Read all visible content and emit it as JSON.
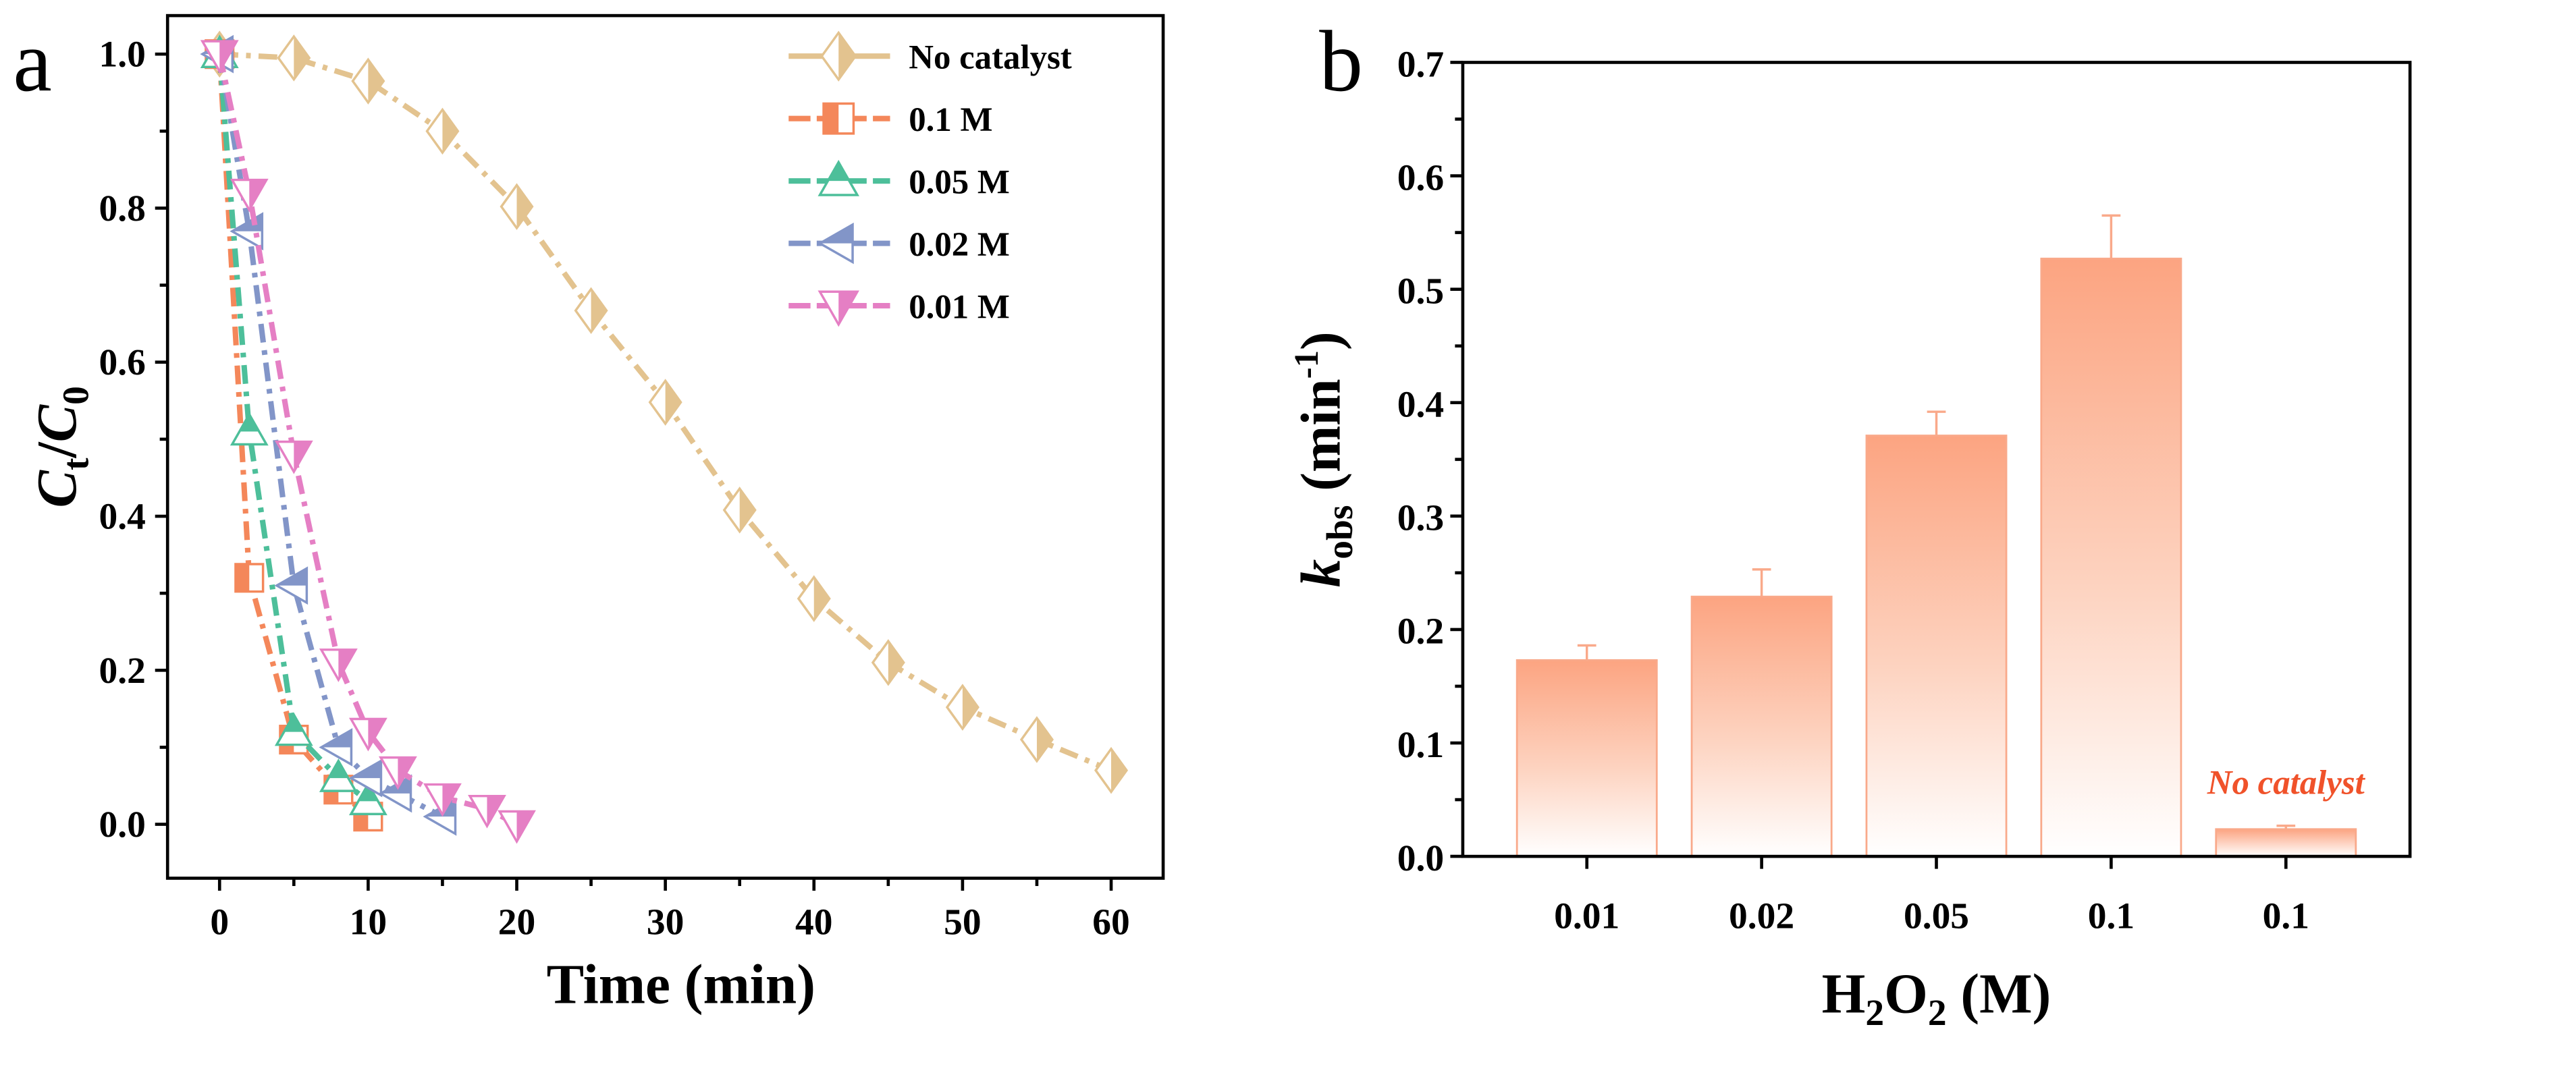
{
  "chart_data": [
    {
      "panel": "a",
      "type": "line",
      "xlabel": "Time (min)",
      "ylabel": {
        "main": "C",
        "sub1": "t",
        "slash": "/",
        "main2": "C",
        "sub2": "0"
      },
      "xlim": [
        -3.5,
        63.5
      ],
      "ylim": [
        -0.07,
        1.05
      ],
      "xticks": [
        0,
        10,
        20,
        30,
        40,
        50,
        60
      ],
      "xtick_labels": [
        "0",
        "10",
        "20",
        "30",
        "40",
        "50",
        "60"
      ],
      "yticks": [
        0.0,
        0.2,
        0.4,
        0.6,
        0.8,
        1.0
      ],
      "ytick_labels": [
        "0.0",
        "0.2",
        "0.4",
        "0.6",
        "0.8",
        "1.0"
      ],
      "legend_position": "top-right",
      "series": [
        {
          "name": "No catalyst",
          "color": "#E3C38F",
          "marker": "diamond",
          "x": [
            0,
            5,
            10,
            15,
            20,
            25,
            30,
            35,
            40,
            45,
            50,
            55,
            60
          ],
          "y": [
            1.0,
            0.995,
            0.965,
            0.9,
            0.802,
            0.667,
            0.548,
            0.408,
            0.293,
            0.21,
            0.152,
            0.11,
            0.07
          ]
        },
        {
          "name": "0.1 M",
          "color": "#F4875A",
          "marker": "square",
          "x": [
            0,
            2,
            5,
            8,
            10
          ],
          "y": [
            1.0,
            0.32,
            0.11,
            0.045,
            0.01
          ]
        },
        {
          "name": "0.05 M",
          "color": "#4DBF9A",
          "marker": "triangle-up",
          "x": [
            0,
            2,
            5,
            8,
            10
          ],
          "y": [
            1.0,
            0.51,
            0.12,
            0.06,
            0.03
          ]
        },
        {
          "name": "0.02 M",
          "color": "#8295C8",
          "marker": "triangle-left",
          "x": [
            0,
            2,
            5,
            8,
            10,
            12,
            15
          ],
          "y": [
            1.0,
            0.77,
            0.31,
            0.1,
            0.06,
            0.04,
            0.01
          ]
        },
        {
          "name": "0.01 M",
          "color": "#E57FC4",
          "marker": "triangle-down",
          "x": [
            0,
            2,
            5,
            8,
            10,
            12,
            15,
            18,
            20
          ],
          "y": [
            1.0,
            0.82,
            0.48,
            0.21,
            0.12,
            0.07,
            0.035,
            0.02,
            0.0
          ]
        }
      ]
    },
    {
      "panel": "b",
      "type": "bar",
      "xlabel": {
        "pre": "H",
        "sub1": "2",
        "mid": "O",
        "sub2": "2",
        "post": " (M)"
      },
      "ylabel": {
        "main": "k",
        "sub": "obs",
        "post": " (min",
        "sup": "-1",
        "end": ")"
      },
      "categories": [
        "0.01",
        "0.02",
        "0.05",
        "0.1",
        "0.1"
      ],
      "values": [
        0.173,
        0.229,
        0.371,
        0.527,
        0.024
      ],
      "errors": [
        0.013,
        0.024,
        0.021,
        0.038,
        0.003
      ],
      "ylim": [
        0,
        0.7
      ],
      "yticks": [
        0.0,
        0.1,
        0.2,
        0.3,
        0.4,
        0.5,
        0.6,
        0.7
      ],
      "ytick_labels": [
        "0.0",
        "0.1",
        "0.2",
        "0.3",
        "0.4",
        "0.5",
        "0.6",
        "0.7"
      ],
      "bar_color": "#FCA481",
      "annotation": {
        "text": "No catalyst",
        "category_index": 4,
        "color": "#F0522A"
      }
    }
  ],
  "panel_labels": [
    "a",
    "b"
  ]
}
